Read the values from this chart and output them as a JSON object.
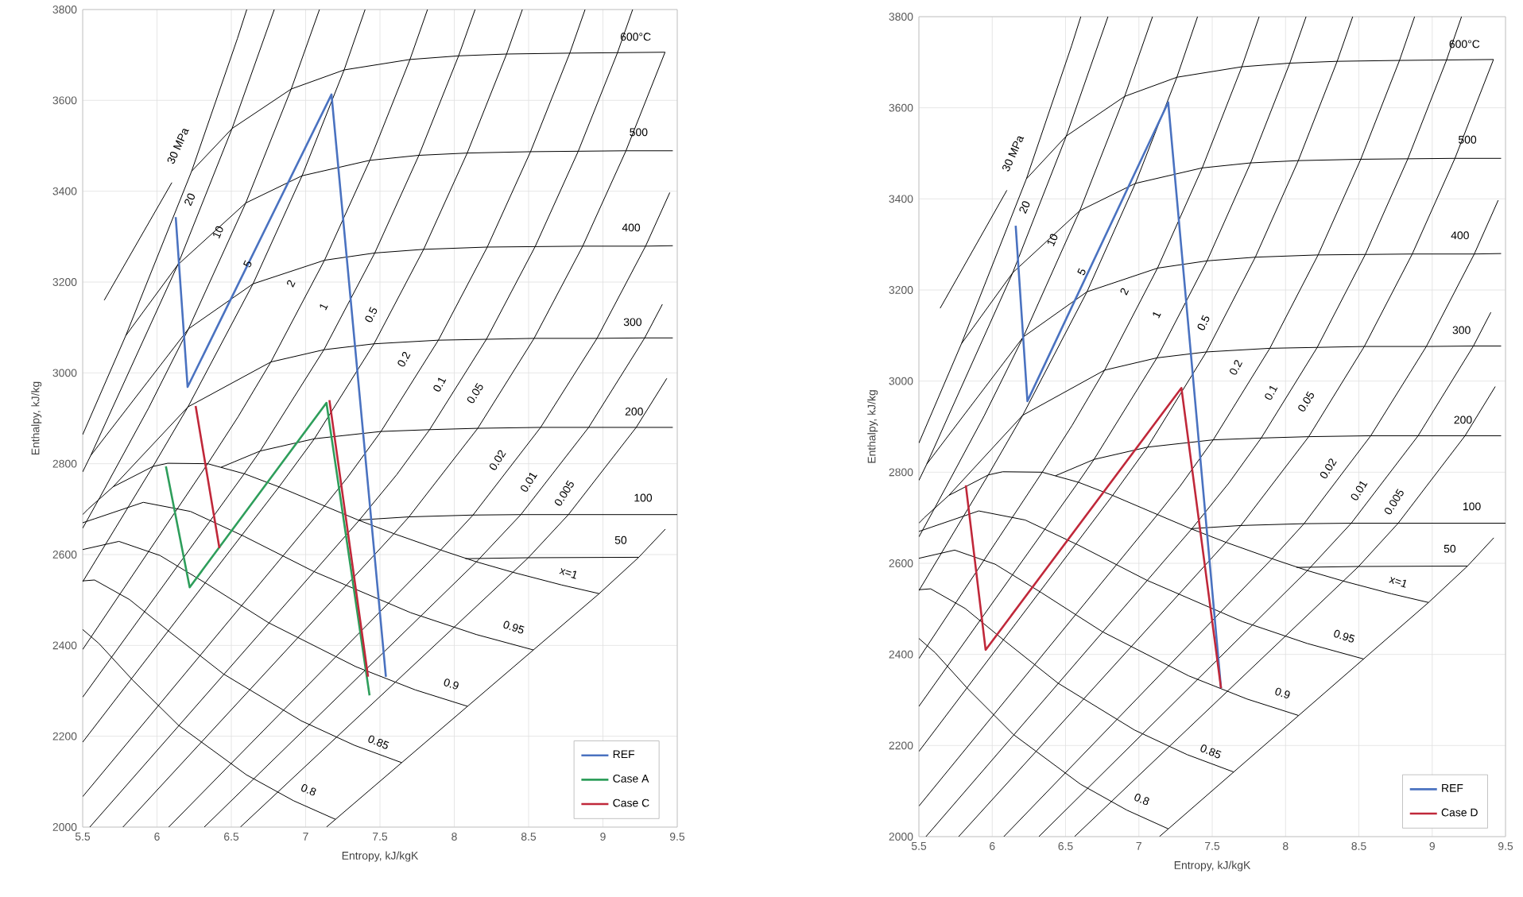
{
  "chart_data": [
    {
      "type": "line",
      "xlabel": "Entropy, kJ/kgK",
      "ylabel": "Enthalpy, kJ/kg",
      "xlim": [
        5.5,
        9.5
      ],
      "ylim": [
        2000,
        3800
      ],
      "xticks": [
        5.5,
        6,
        6.5,
        7,
        7.5,
        8,
        8.5,
        9,
        9.5
      ],
      "yticks": [
        2000,
        2200,
        2400,
        2600,
        2800,
        3000,
        3200,
        3400,
        3600,
        3800
      ],
      "grid": true,
      "legend": "bottom right",
      "series": [
        {
          "color": "#000000",
          "x": [
            7.14,
            8.975,
            9.241,
            9.42
          ],
          "values": [
            2000,
            2514,
            2594,
            2656
          ]
        },
        {
          "color": "#000000",
          "x": [
            6.561,
            8.394,
            8.498,
            8.768,
            9.224,
            9.43
          ],
          "values": [
            2000,
            2561,
            2593,
            2688,
            2880,
            2988
          ]
        },
        {
          "color": "#000000",
          "x": [
            6.318,
            8.149,
            8.448,
            8.904,
            9.281,
            9.4
          ],
          "values": [
            2000,
            2584,
            2688,
            2880,
            3077,
            3151
          ]
        },
        {
          "color": "#000000",
          "x": [
            6.079,
            7.908,
            8.126,
            8.581,
            8.96,
            9.287,
            9.45
          ],
          "values": [
            2000,
            2610,
            2687,
            2880,
            3076,
            3279,
            3397
          ]
        },
        {
          "color": "#000000",
          "x": [
            5.771,
            7.594,
            7.695,
            8.158,
            8.537,
            8.864,
            9.155,
            9.418
          ],
          "values": [
            2000,
            2646,
            2683,
            2878,
            3076,
            3279,
            3489,
            3706
          ]
        },
        {
          "color": "#000000",
          "x": [
            5.548,
            7.359,
            7.613,
            7.834,
            8.216,
            8.544,
            8.834,
            9.098,
            9.2
          ],
          "values": [
            2000,
            2675,
            2776,
            2875,
            3074,
            3278,
            3488,
            3705,
            3800
          ]
        },
        {
          "color": "#000000",
          "x": [
            5.5,
            7.127,
            7.28,
            7.507,
            7.893,
            8.222,
            8.513,
            8.777,
            8.88
          ],
          "values": [
            2067,
            2707,
            2769,
            2871,
            3072,
            3277,
            3487,
            3704,
            3800
          ]
        },
        {
          "color": "#000000",
          "x": [
            5.5,
            6.821,
            7.059,
            7.46,
            7.794,
            8.087,
            8.352,
            8.458
          ],
          "values": [
            2187,
            2749,
            2855,
            3064,
            3272,
            3484,
            3702,
            3800
          ]
        },
        {
          "color": "#000000",
          "x": [
            5.5,
            6.587,
            6.694,
            7.123,
            7.465,
            7.762,
            8.029,
            8.14
          ],
          "values": [
            2286,
            2778,
            2828,
            3051,
            3264,
            3479,
            3698,
            3800
          ]
        },
        {
          "color": "#000000",
          "x": [
            5.5,
            6.341,
            6.545,
            6.766,
            7.127,
            7.432,
            7.702,
            7.82
          ],
          "values": [
            2391,
            2800,
            2903,
            3024,
            3248,
            3468,
            3690,
            3800
          ]
        },
        {
          "color": "#000000",
          "x": [
            5.5,
            5.973,
            6.208,
            6.646,
            6.976,
            7.259,
            7.4
          ],
          "values": [
            2540,
            2794,
            2925,
            3196,
            3434,
            3667,
            3800
          ]
        },
        {
          "color": "#000000",
          "x": [
            5.5,
            5.614,
            5.944,
            6.212,
            6.597,
            6.903,
            7.093
          ],
          "values": [
            2658,
            2725,
            2923,
            3097,
            3374,
            3625,
            3800
          ]
        },
        {
          "color": "#000000",
          "x": [
            5.5,
            5.554,
            6.14,
            6.505,
            6.789
          ],
          "values": [
            2782,
            2818,
            3238,
            3538,
            3800
          ]
        },
        {
          "color": "#000000",
          "x": [
            5.5,
            5.79,
            6.233,
            6.541,
            6.604
          ],
          "values": [
            2864,
            3082,
            3444,
            3736,
            3800
          ]
        },
        {
          "color": "#000000",
          "x": [
            5.645,
            6.1
          ],
          "values": [
            3160,
            3419
          ]
        },
        {
          "color": "#000000",
          "x": [
            6.233,
            6.505,
            6.903,
            7.259,
            7.702,
            8.029,
            8.352,
            8.777,
            9.098,
            9.418
          ],
          "values": [
            3444,
            3538,
            3625,
            3667,
            3690,
            3698,
            3702,
            3704,
            3705,
            3706
          ]
        },
        {
          "color": "#000000",
          "x": [
            5.79,
            6.14,
            6.597,
            6.976,
            7.432,
            7.762,
            8.087,
            8.513,
            8.834,
            9.155,
            9.47
          ],
          "values": [
            3082,
            3238,
            3374,
            3434,
            3468,
            3479,
            3484,
            3487,
            3488,
            3489,
            3489
          ]
        },
        {
          "color": "#000000",
          "x": [
            5.554,
            6.212,
            6.646,
            7.127,
            7.465,
            7.794,
            8.222,
            8.544,
            8.864,
            9.287,
            9.47
          ],
          "values": [
            2818,
            3097,
            3196,
            3248,
            3264,
            3272,
            3277,
            3278,
            3279,
            3279,
            3280
          ]
        },
        {
          "color": "#000000",
          "x": [
            5.704,
            6.208,
            6.766,
            7.123,
            7.46,
            7.893,
            8.216,
            8.537,
            8.96,
            9.281,
            9.47
          ],
          "values": [
            2749,
            2925,
            3024,
            3051,
            3064,
            3072,
            3074,
            3076,
            3076,
            3077,
            3077
          ]
        },
        {
          "color": "#000000",
          "x": [
            6.43,
            6.694,
            7.059,
            7.507,
            7.834,
            8.158,
            8.581,
            8.904,
            9.224,
            9.47
          ],
          "values": [
            2792,
            2828,
            2855,
            2871,
            2875,
            2878,
            2880,
            2880,
            2880,
            2880
          ]
        },
        {
          "color": "#000000",
          "x": [
            7.354,
            7.695,
            8.126,
            8.448,
            8.768,
            9.5
          ],
          "values": [
            2676,
            2683,
            2687,
            2688,
            2688,
            2688
          ]
        },
        {
          "color": "#000000",
          "x": [
            8.075,
            8.498,
            9.241
          ],
          "values": [
            2591,
            2593,
            2594
          ]
        },
        {
          "color": "#000000",
          "x": [
            5.5,
            5.536,
            5.704,
            5.973,
            6.072,
            6.341,
            6.43,
            6.587,
            6.821,
            7.127,
            7.354,
            7.594,
            7.908,
            8.149,
            8.394,
            8.723,
            8.975
          ],
          "values": [
            2688,
            2700,
            2749,
            2794,
            2801,
            2800,
            2792,
            2778,
            2749,
            2707,
            2676,
            2646,
            2610,
            2584,
            2561,
            2533,
            2514
          ]
        },
        {
          "color": "#000000",
          "x": [
            5.5,
            5.582,
            5.908,
            6.225,
            6.587,
            7.053,
            7.707,
            8.148,
            8.532
          ],
          "values": [
            2670,
            2679,
            2715,
            2695,
            2640,
            2563,
            2472,
            2424,
            2390
          ]
        },
        {
          "color": "#000000",
          "x": [
            5.5,
            5.744,
            6.02,
            6.338,
            6.75,
            7.339,
            7.738,
            8.088
          ],
          "values": [
            2611,
            2629,
            2598,
            2535,
            2450,
            2353,
            2302,
            2266
          ]
        },
        {
          "color": "#000000",
          "x": [
            5.5,
            5.58,
            5.815,
            6.088,
            6.448,
            6.97,
            7.329,
            7.645
          ],
          "values": [
            2542,
            2544,
            2501,
            2429,
            2337,
            2234,
            2180,
            2142
          ]
        },
        {
          "color": "#000000",
          "x": [
            5.5,
            5.61,
            5.838,
            6.145,
            6.602,
            6.919,
            7.201
          ],
          "values": [
            2435,
            2404,
            2323,
            2224,
            2115,
            2058,
            2017
          ]
        },
        {
          "name": "REF",
          "color": "#4a72c0",
          "x": [
            6.126,
            6.206,
            7.174,
            7.54
          ],
          "values": [
            3343,
            2969,
            3613,
            2331
          ]
        },
        {
          "name": "Case A",
          "color": "#2e9e5b",
          "x": [
            6.06,
            6.22,
            7.14,
            7.43
          ],
          "values": [
            2794,
            2528,
            2934,
            2290
          ]
        },
        {
          "name": "Case C",
          "color": "#c0283a",
          "x": [
            6.26,
            6.42,
            null,
            7.16,
            7.42
          ],
          "values": [
            2927,
            2614,
            null,
            2940,
            2331
          ]
        }
      ],
      "annotations": [
        "600°C",
        "500",
        "400",
        "300",
        "200",
        "100",
        "50",
        "x=1",
        "0.95",
        "0.9",
        "0.85",
        "0.8",
        "0.005",
        "0.01",
        "0.02",
        "0.05",
        "0.1",
        "0.2",
        "0.5",
        "1",
        "2",
        "5",
        "10",
        "20",
        "30 MPa"
      ]
    },
    {
      "type": "line",
      "xlabel": "Entropy, kJ/kgK",
      "ylabel": "Enthalpy, kJ/kg",
      "xlim": [
        5.5,
        9.5
      ],
      "ylim": [
        2000,
        3800
      ],
      "xticks": [
        5.5,
        6,
        6.5,
        7,
        7.5,
        8,
        8.5,
        9,
        9.5
      ],
      "yticks": [
        2000,
        2200,
        2400,
        2600,
        2800,
        3000,
        3200,
        3400,
        3600,
        3800
      ],
      "grid": true,
      "legend": "bottom right",
      "series": [
        {
          "color": "#000000",
          "x": [
            7.14,
            8.975,
            9.241,
            9.42
          ],
          "values": [
            2000,
            2514,
            2594,
            2656
          ]
        },
        {
          "color": "#000000",
          "x": [
            6.561,
            8.394,
            8.498,
            8.768,
            9.224,
            9.43
          ],
          "values": [
            2000,
            2561,
            2593,
            2688,
            2880,
            2988
          ]
        },
        {
          "color": "#000000",
          "x": [
            6.318,
            8.149,
            8.448,
            8.904,
            9.281,
            9.4
          ],
          "values": [
            2000,
            2584,
            2688,
            2880,
            3077,
            3151
          ]
        },
        {
          "color": "#000000",
          "x": [
            6.079,
            7.908,
            8.126,
            8.581,
            8.96,
            9.287,
            9.45
          ],
          "values": [
            2000,
            2610,
            2687,
            2880,
            3076,
            3279,
            3397
          ]
        },
        {
          "color": "#000000",
          "x": [
            5.771,
            7.594,
            7.695,
            8.158,
            8.537,
            8.864,
            9.155,
            9.418
          ],
          "values": [
            2000,
            2646,
            2683,
            2878,
            3076,
            3279,
            3489,
            3706
          ]
        },
        {
          "color": "#000000",
          "x": [
            5.548,
            7.359,
            7.613,
            7.834,
            8.216,
            8.544,
            8.834,
            9.098,
            9.2
          ],
          "values": [
            2000,
            2675,
            2776,
            2875,
            3074,
            3278,
            3488,
            3705,
            3800
          ]
        },
        {
          "color": "#000000",
          "x": [
            5.5,
            7.127,
            7.28,
            7.507,
            7.893,
            8.222,
            8.513,
            8.777,
            8.88
          ],
          "values": [
            2067,
            2707,
            2769,
            2871,
            3072,
            3277,
            3487,
            3704,
            3800
          ]
        },
        {
          "color": "#000000",
          "x": [
            5.5,
            6.821,
            7.059,
            7.46,
            7.794,
            8.087,
            8.352,
            8.458
          ],
          "values": [
            2187,
            2749,
            2855,
            3064,
            3272,
            3484,
            3702,
            3800
          ]
        },
        {
          "color": "#000000",
          "x": [
            5.5,
            6.587,
            6.694,
            7.123,
            7.465,
            7.762,
            8.029,
            8.14
          ],
          "values": [
            2286,
            2778,
            2828,
            3051,
            3264,
            3479,
            3698,
            3800
          ]
        },
        {
          "color": "#000000",
          "x": [
            5.5,
            6.341,
            6.545,
            6.766,
            7.127,
            7.432,
            7.702,
            7.82
          ],
          "values": [
            2391,
            2800,
            2903,
            3024,
            3248,
            3468,
            3690,
            3800
          ]
        },
        {
          "color": "#000000",
          "x": [
            5.5,
            5.973,
            6.208,
            6.646,
            6.976,
            7.259,
            7.4
          ],
          "values": [
            2540,
            2794,
            2925,
            3196,
            3434,
            3667,
            3800
          ]
        },
        {
          "color": "#000000",
          "x": [
            5.5,
            5.614,
            5.944,
            6.212,
            6.597,
            6.903,
            7.093
          ],
          "values": [
            2658,
            2725,
            2923,
            3097,
            3374,
            3625,
            3800
          ]
        },
        {
          "color": "#000000",
          "x": [
            5.5,
            5.554,
            6.14,
            6.505,
            6.789
          ],
          "values": [
            2782,
            2818,
            3238,
            3538,
            3800
          ]
        },
        {
          "color": "#000000",
          "x": [
            5.5,
            5.79,
            6.233,
            6.541,
            6.604
          ],
          "values": [
            2864,
            3082,
            3444,
            3736,
            3800
          ]
        },
        {
          "color": "#000000",
          "x": [
            5.645,
            6.1
          ],
          "values": [
            3160,
            3419
          ]
        },
        {
          "color": "#000000",
          "x": [
            6.233,
            6.505,
            6.903,
            7.259,
            7.702,
            8.029,
            8.352,
            8.777,
            9.098,
            9.418
          ],
          "values": [
            3444,
            3538,
            3625,
            3667,
            3690,
            3698,
            3702,
            3704,
            3705,
            3706
          ]
        },
        {
          "color": "#000000",
          "x": [
            5.79,
            6.14,
            6.597,
            6.976,
            7.432,
            7.762,
            8.087,
            8.513,
            8.834,
            9.155,
            9.47
          ],
          "values": [
            3082,
            3238,
            3374,
            3434,
            3468,
            3479,
            3484,
            3487,
            3488,
            3489,
            3489
          ]
        },
        {
          "color": "#000000",
          "x": [
            5.554,
            6.212,
            6.646,
            7.127,
            7.465,
            7.794,
            8.222,
            8.544,
            8.864,
            9.287,
            9.47
          ],
          "values": [
            2818,
            3097,
            3196,
            3248,
            3264,
            3272,
            3277,
            3278,
            3279,
            3279,
            3280
          ]
        },
        {
          "color": "#000000",
          "x": [
            5.704,
            6.208,
            6.766,
            7.123,
            7.46,
            7.893,
            8.216,
            8.537,
            8.96,
            9.281,
            9.47
          ],
          "values": [
            2749,
            2925,
            3024,
            3051,
            3064,
            3072,
            3074,
            3076,
            3076,
            3077,
            3077
          ]
        },
        {
          "color": "#000000",
          "x": [
            6.43,
            6.694,
            7.059,
            7.507,
            7.834,
            8.158,
            8.581,
            8.904,
            9.224,
            9.47
          ],
          "values": [
            2792,
            2828,
            2855,
            2871,
            2875,
            2878,
            2880,
            2880,
            2880,
            2880
          ]
        },
        {
          "color": "#000000",
          "x": [
            7.354,
            7.695,
            8.126,
            8.448,
            8.768,
            9.5
          ],
          "values": [
            2676,
            2683,
            2687,
            2688,
            2688,
            2688
          ]
        },
        {
          "color": "#000000",
          "x": [
            8.075,
            8.498,
            9.241
          ],
          "values": [
            2591,
            2593,
            2594
          ]
        },
        {
          "color": "#000000",
          "x": [
            5.5,
            5.536,
            5.704,
            5.973,
            6.072,
            6.341,
            6.43,
            6.587,
            6.821,
            7.127,
            7.354,
            7.594,
            7.908,
            8.149,
            8.394,
            8.723,
            8.975
          ],
          "values": [
            2688,
            2700,
            2749,
            2794,
            2801,
            2800,
            2792,
            2778,
            2749,
            2707,
            2676,
            2646,
            2610,
            2584,
            2561,
            2533,
            2514
          ]
        },
        {
          "color": "#000000",
          "x": [
            5.5,
            5.582,
            5.908,
            6.225,
            6.587,
            7.053,
            7.707,
            8.148,
            8.532
          ],
          "values": [
            2670,
            2679,
            2715,
            2695,
            2640,
            2563,
            2472,
            2424,
            2390
          ]
        },
        {
          "color": "#000000",
          "x": [
            5.5,
            5.744,
            6.02,
            6.338,
            6.75,
            7.339,
            7.738,
            8.088
          ],
          "values": [
            2611,
            2629,
            2598,
            2535,
            2450,
            2353,
            2302,
            2266
          ]
        },
        {
          "color": "#000000",
          "x": [
            5.5,
            5.58,
            5.815,
            6.088,
            6.448,
            6.97,
            7.329,
            7.645
          ],
          "values": [
            2542,
            2544,
            2501,
            2429,
            2337,
            2234,
            2180,
            2142
          ]
        },
        {
          "color": "#000000",
          "x": [
            5.5,
            5.61,
            5.838,
            6.145,
            6.602,
            6.919,
            7.201
          ],
          "values": [
            2435,
            2404,
            2323,
            2224,
            2115,
            2058,
            2017
          ]
        },
        {
          "name": "REF",
          "color": "#4a72c0",
          "x": [
            6.16,
            6.24,
            7.2,
            7.56
          ],
          "values": [
            3341,
            2956,
            3612,
            2326
          ]
        },
        {
          "name": "Case D",
          "color": "#c0283a",
          "x": [
            5.82,
            5.955,
            7.29,
            7.56
          ],
          "values": [
            2771,
            2410,
            2985,
            2326
          ]
        }
      ],
      "annotations": [
        "600°C",
        "500",
        "400",
        "300",
        "200",
        "100",
        "50",
        "x=1",
        "0.95",
        "0.9",
        "0.85",
        "0.8",
        "0.005",
        "0.01",
        "0.02",
        "0.05",
        "0.1",
        "0.2",
        "0.5",
        "1",
        "2",
        "5",
        "10",
        "20",
        "30 MPa"
      ]
    }
  ]
}
